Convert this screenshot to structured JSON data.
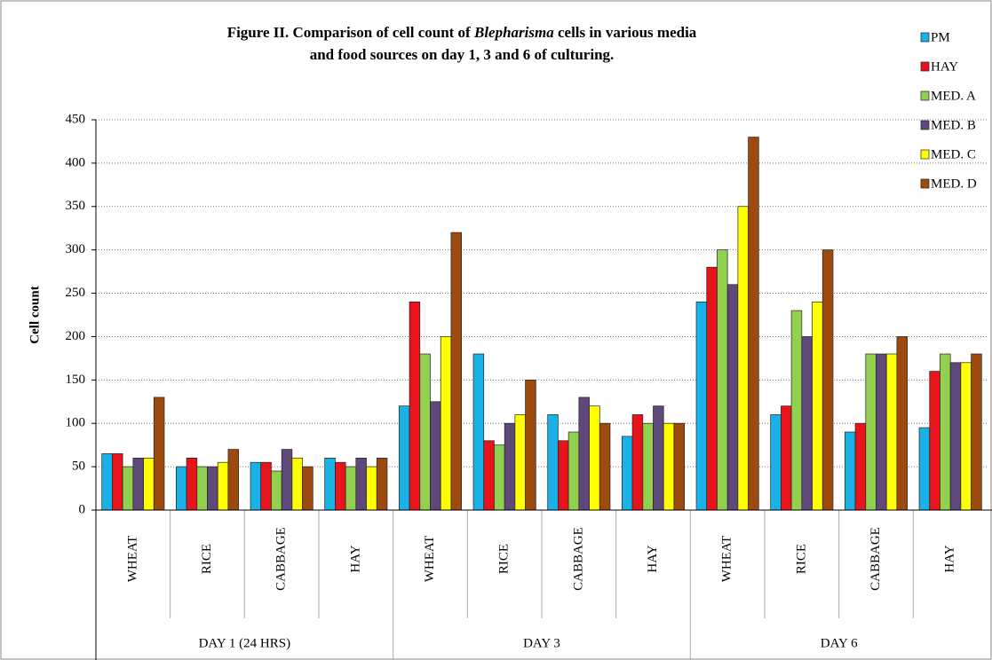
{
  "chart_data": {
    "type": "bar",
    "title": {
      "lines": [
        [
          "Figure II. Comparison of cell count of ",
          "Blepharisma",
          " cells in various media"
        ],
        [
          "and food sources on day 1, 3 and 6 of culturing."
        ]
      ]
    },
    "y_label": "Cell count",
    "groups": [
      {
        "name": "DAY 1 (24 HRS)",
        "categories": [
          "WHEAT",
          "RICE",
          "CABBAGE",
          "HAY"
        ]
      },
      {
        "name": "DAY 3",
        "categories": [
          "WHEAT",
          "RICE",
          "CABBAGE",
          "HAY"
        ]
      },
      {
        "name": "DAY 6",
        "categories": [
          "WHEAT",
          "RICE",
          "CABBAGE",
          "HAY"
        ]
      }
    ],
    "series": [
      {
        "name": "PM",
        "color": "#1ab2e6",
        "values": [
          65,
          50,
          55,
          60,
          120,
          180,
          110,
          85,
          240,
          110,
          90,
          95
        ]
      },
      {
        "name": "HAY",
        "color": "#e8141c",
        "values": [
          65,
          60,
          55,
          55,
          240,
          80,
          80,
          110,
          280,
          120,
          100,
          160
        ]
      },
      {
        "name": "MED. A",
        "color": "#92d050",
        "values": [
          50,
          50,
          45,
          50,
          180,
          75,
          90,
          100,
          300,
          230,
          180,
          180
        ]
      },
      {
        "name": "MED. B",
        "color": "#5f497a",
        "values": [
          60,
          50,
          70,
          60,
          125,
          100,
          130,
          120,
          260,
          200,
          180,
          170
        ]
      },
      {
        "name": "MED. C",
        "color": "#ffff00",
        "values": [
          60,
          55,
          60,
          50,
          200,
          110,
          120,
          100,
          350,
          240,
          180,
          170
        ]
      },
      {
        "name": "MED. D",
        "color": "#9c4a10",
        "values": [
          130,
          70,
          50,
          60,
          320,
          150,
          100,
          100,
          430,
          300,
          200,
          180
        ]
      }
    ],
    "ylim": [
      0,
      450
    ],
    "yticks": [
      0,
      50,
      100,
      150,
      200,
      250,
      300,
      350,
      400,
      450
    ],
    "grid": true
  }
}
